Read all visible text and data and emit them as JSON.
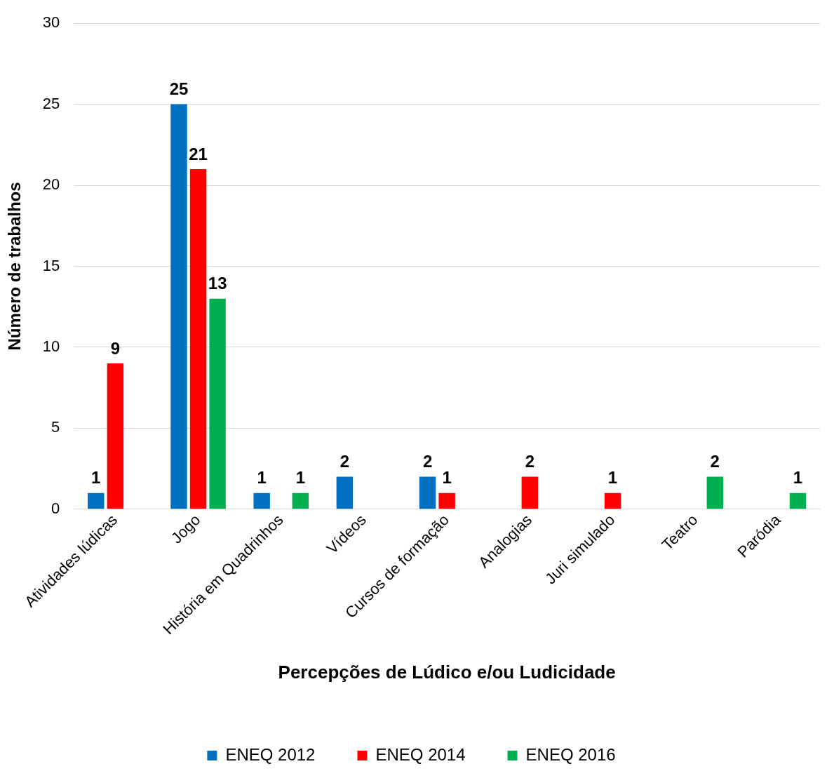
{
  "chart_data": {
    "type": "bar",
    "xlabel": "Percepções de Lúdico e/ou Ludicidade",
    "ylabel": "Número de trabalhos",
    "categories": [
      "Atividades lúdicas",
      "Jogo",
      "História em Quadrinhos",
      "Vídeos",
      "Cursos de formação",
      "Analogias",
      "Juri simulado",
      "Teatro",
      "Paródia"
    ],
    "series": [
      {
        "name": "ENEQ 2012",
        "color": "#0070c0",
        "values": [
          1,
          25,
          1,
          2,
          2,
          null,
          null,
          null,
          null
        ]
      },
      {
        "name": "ENEQ 2014",
        "color": "#ff0000",
        "values": [
          9,
          21,
          null,
          null,
          1,
          2,
          1,
          null,
          null
        ]
      },
      {
        "name": "ENEQ 2016",
        "color": "#00b050",
        "values": [
          null,
          13,
          1,
          null,
          null,
          null,
          null,
          2,
          1
        ]
      }
    ],
    "ylim": [
      0,
      30
    ],
    "yticks": [
      0,
      5,
      10,
      15,
      20,
      25,
      30
    ],
    "grid": "y",
    "legend": "bottom",
    "data_labels": true
  }
}
